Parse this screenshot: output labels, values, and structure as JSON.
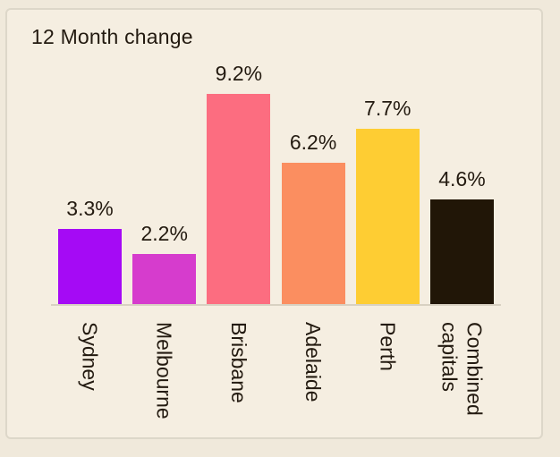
{
  "card": {
    "background": "#f5eee1",
    "border_color": "#ddd7c9",
    "text_color": "#231a10",
    "axis_line_color": "#d8d1c2"
  },
  "chart_data": {
    "type": "bar",
    "title": "12 Month change",
    "categories": [
      "Sydney",
      "Melbourne",
      "Brisbane",
      "Adelaide",
      "Perth",
      "Combined\ncapitals"
    ],
    "values": [
      3.3,
      2.2,
      9.2,
      6.2,
      7.7,
      4.6
    ],
    "value_labels": [
      "3.3%",
      "2.2%",
      "9.2%",
      "6.2%",
      "7.7%",
      "4.6%"
    ],
    "bar_colors": [
      "#a50af5",
      "#d63ccd",
      "#fc6d80",
      "#fb8e60",
      "#fecd33",
      "#211607"
    ],
    "xlabel": "",
    "ylabel": "",
    "ylim": [
      0,
      10.6
    ],
    "grid": false,
    "legend": false,
    "x_tick_rotation": 90,
    "orientation": "vertical"
  }
}
